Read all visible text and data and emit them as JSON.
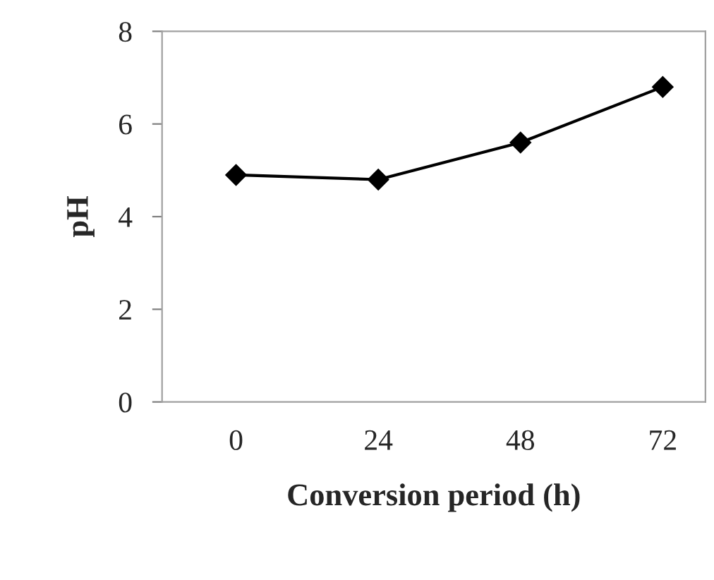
{
  "chart_data": {
    "type": "line",
    "xlabel": "Conversion period (h)",
    "ylabel": "pH",
    "categories": [
      "0",
      "24",
      "48",
      "72"
    ],
    "series": [
      {
        "color": "#000000",
        "values": [
          4.9,
          4.8,
          5.6,
          6.8
        ]
      }
    ],
    "ylim": [
      0,
      8
    ],
    "yticks": [
      0,
      2,
      4,
      6,
      8
    ],
    "grid": false,
    "legend": false,
    "marker": "diamond",
    "line_style": "solid"
  }
}
